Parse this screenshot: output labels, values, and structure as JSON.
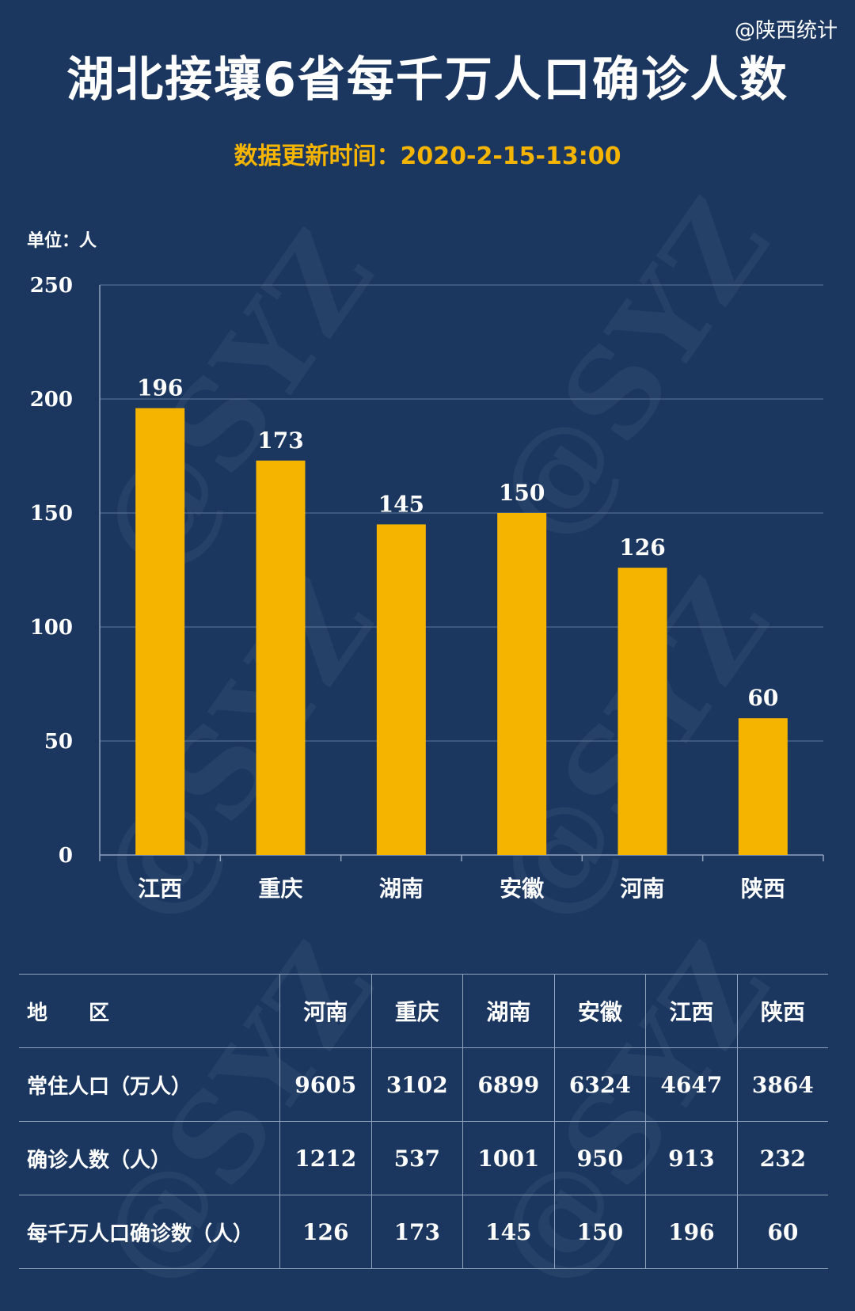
{
  "watermark": "@陕西统计",
  "header": {
    "title": "湖北接壤6省每千万人口确诊人数",
    "update_time": "数据更新时间：2020-2-15-13:00",
    "unit": "单位：人"
  },
  "colors": {
    "background": "#1b3760",
    "bar": "#f5b400",
    "text": "#ffffff",
    "subtitle": "#f5b400"
  },
  "chart_data": {
    "type": "bar",
    "categories": [
      "江西",
      "重庆",
      "湖南",
      "安徽",
      "河南",
      "陕西"
    ],
    "values": [
      196,
      173,
      145,
      150,
      126,
      60
    ],
    "ylim": [
      0,
      250
    ],
    "yticks": [
      0,
      50,
      100,
      150,
      200,
      250
    ],
    "grid": true,
    "data_labels": true
  },
  "table": {
    "header": [
      "地　　区",
      "河南",
      "重庆",
      "湖南",
      "安徽",
      "江西",
      "陕西"
    ],
    "rows": [
      {
        "label": "常住人口（万人）",
        "values": [
          "9605",
          "3102",
          "6899",
          "6324",
          "4647",
          "3864"
        ]
      },
      {
        "label": "确诊人数（人）",
        "values": [
          "1212",
          "537",
          "1001",
          "950",
          "913",
          "232"
        ]
      },
      {
        "label": "每千万人口确诊数（人）",
        "values": [
          "126",
          "173",
          "145",
          "150",
          "196",
          "60"
        ]
      }
    ]
  }
}
